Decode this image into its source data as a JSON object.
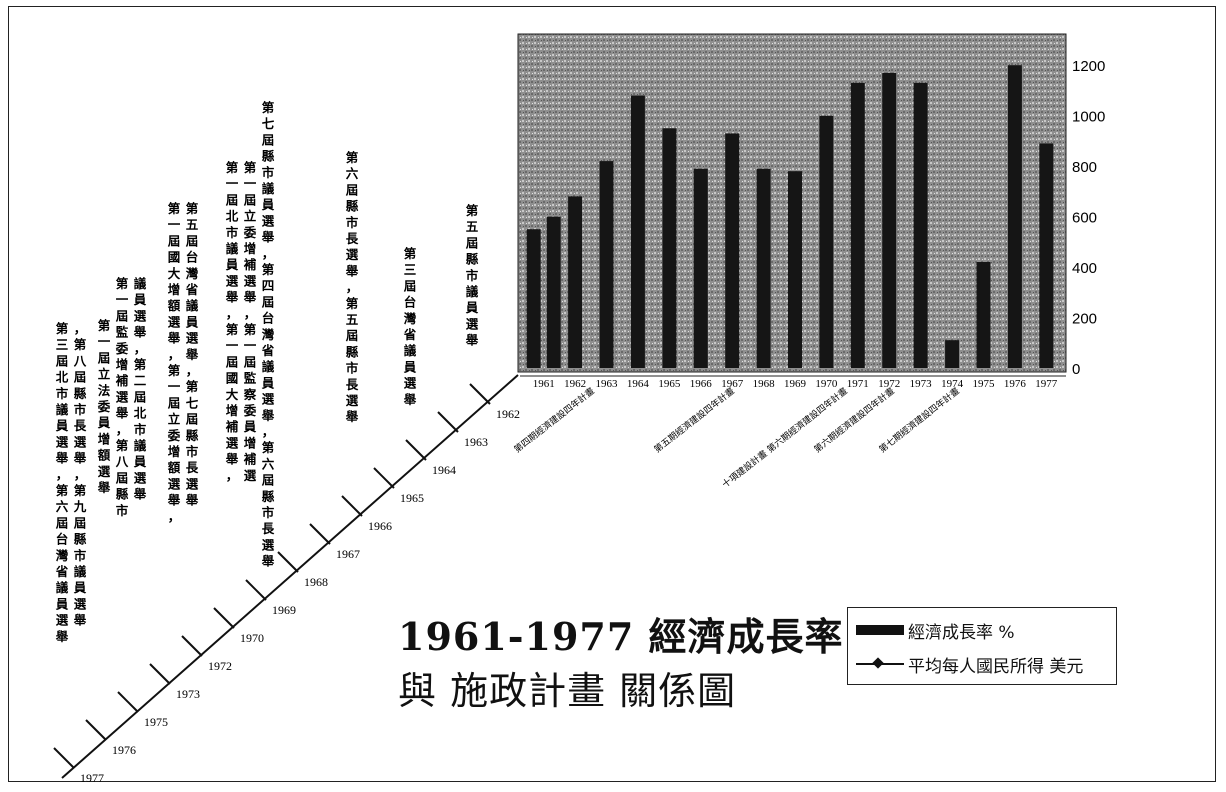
{
  "title_line1": "1961-1977 經濟成長率",
  "title_line2": "與 施政計畫 關係圖",
  "legend": {
    "bar_label": "經濟成長率 %",
    "line_label": "平均每人國民所得 美元"
  },
  "timeline": {
    "years": [
      "1962",
      "1963",
      "1964",
      "1965",
      "1966",
      "1967",
      "1968",
      "1969",
      "1970",
      "1972",
      "1973",
      "1975",
      "1976",
      "1977"
    ],
    "events": [
      "第五屆縣市議員選舉",
      "第三屆台灣省議員選舉",
      "第六屆縣市長選舉，第五屆縣市長選舉",
      "第七屆縣市議員選舉，第四屆台灣省議員選舉，第六屆縣市長選舉",
      "第一屆北市議員選舉，第一屆國大增補選舉，第一屆立委增補選舉，第一屆監察委員增補選",
      "第一屆國大增額選舉，第一屆立委增額選舉，第五屆台灣省議員選舉，第七屆縣市長選舉",
      "第一屆監委增補選舉，第八屆縣市議員選舉，第二屆北市議員選舉",
      "第一屆立法委員增額選舉",
      "第三屆北市議員選舉，第六屆台灣省議員選舉，第八屆縣市長選舉，第九屆縣市議員選舉"
    ]
  },
  "chart_data": {
    "type": "bar",
    "title": "",
    "xlabel": "",
    "ylabel": "",
    "ylim": [
      0,
      1300
    ],
    "yticks": [
      0,
      200,
      400,
      600,
      800,
      1000,
      1200
    ],
    "ytick_labels": [
      "0",
      "200",
      "400",
      "600",
      "800",
      "1000",
      "1200"
    ],
    "grid": false,
    "background": "#9a9a9a",
    "bar_color": "#151515",
    "categories": [
      "1961",
      "1962",
      "1963",
      "1964",
      "1965",
      "1966",
      "1967",
      "1968",
      "1969",
      "1970",
      "1971",
      "1972",
      "1973",
      "1974",
      "1975",
      "1976",
      "1977"
    ],
    "series": [
      {
        "name": "經濟成長率 %",
        "bars": [
          [
            550,
            600
          ],
          [
            680
          ],
          [
            820
          ],
          [
            1080
          ],
          [
            950
          ],
          [
            790
          ],
          [
            930
          ],
          [
            790
          ],
          [
            780
          ],
          [
            1000
          ],
          [
            1130
          ],
          [
            1170
          ],
          [
            1130
          ],
          [
            110
          ],
          [
            420
          ],
          [
            1200
          ],
          [
            890
          ]
        ]
      }
    ],
    "plan_labels": [
      "第四期經濟建設四年計畫",
      "第五期經濟建設四年計畫",
      "十項建設計畫 第六期經濟建設四年計畫",
      "第六期經濟建設四年計畫",
      "第七期經濟建設四年計畫"
    ]
  }
}
